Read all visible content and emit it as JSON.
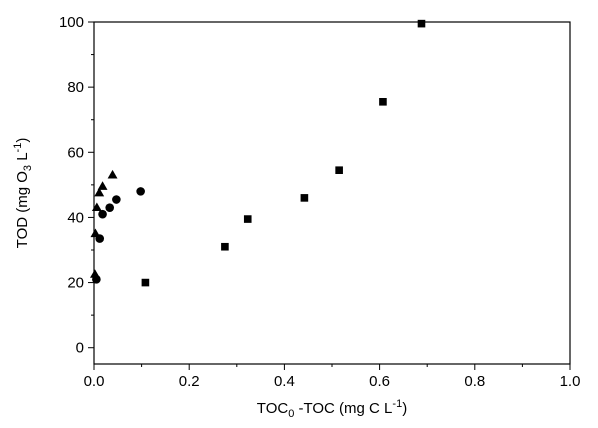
{
  "chart_data": {
    "type": "scatter",
    "title": "",
    "xlabel": {
      "prefix": "TOC",
      "prefix_sub": "0",
      "middle": " -TOC (mg C L",
      "sup": "-1",
      "suffix": ")"
    },
    "ylabel": {
      "prefix": "TOD (mg O",
      "sub": "3",
      "middle": " L",
      "sup": "-1",
      "suffix": ")"
    },
    "xlim": [
      0.0,
      1.0
    ],
    "ylim": [
      -5,
      100
    ],
    "x_ticks": [
      {
        "value": 0.0,
        "label": "0.0"
      },
      {
        "value": 0.2,
        "label": "0.2"
      },
      {
        "value": 0.4,
        "label": "0.4"
      },
      {
        "value": 0.6,
        "label": "0.6"
      },
      {
        "value": 0.8,
        "label": "0.8"
      },
      {
        "value": 1.0,
        "label": "1.0"
      }
    ],
    "y_ticks": [
      {
        "value": 0,
        "label": "0"
      },
      {
        "value": 20,
        "label": "20"
      },
      {
        "value": 40,
        "label": "40"
      },
      {
        "value": 60,
        "label": "60"
      },
      {
        "value": 80,
        "label": "80"
      },
      {
        "value": 100,
        "label": "100"
      }
    ],
    "grid": false,
    "series": [
      {
        "marker": "square",
        "color": "#000000",
        "points": [
          {
            "x": 0.108,
            "y": 20.0
          },
          {
            "x": 0.275,
            "y": 31.0
          },
          {
            "x": 0.323,
            "y": 39.5
          },
          {
            "x": 0.442,
            "y": 46.0
          },
          {
            "x": 0.515,
            "y": 54.5
          },
          {
            "x": 0.607,
            "y": 75.5
          },
          {
            "x": 0.688,
            "y": 99.5
          }
        ]
      },
      {
        "marker": "circle",
        "color": "#000000",
        "points": [
          {
            "x": 0.005,
            "y": 21.0
          },
          {
            "x": 0.012,
            "y": 33.5
          },
          {
            "x": 0.018,
            "y": 41.0
          },
          {
            "x": 0.033,
            "y": 43.0
          },
          {
            "x": 0.047,
            "y": 45.5
          },
          {
            "x": 0.098,
            "y": 48.0
          }
        ]
      },
      {
        "marker": "triangle",
        "color": "#000000",
        "points": [
          {
            "x": 0.002,
            "y": 22.5
          },
          {
            "x": 0.003,
            "y": 35.0
          },
          {
            "x": 0.006,
            "y": 43.0
          },
          {
            "x": 0.011,
            "y": 47.5
          },
          {
            "x": 0.018,
            "y": 49.5
          },
          {
            "x": 0.039,
            "y": 53.0
          }
        ]
      }
    ]
  }
}
